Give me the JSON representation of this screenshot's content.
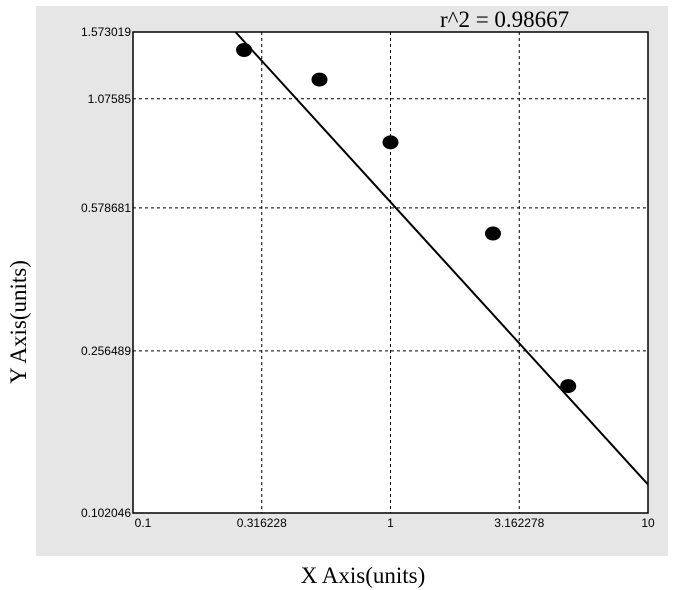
{
  "chart_data": {
    "type": "scatter",
    "title": "",
    "annotation": "r^2  = 0.98667",
    "xlabel": "X Axis(units)",
    "ylabel": "Y Axis(units)",
    "x_scale": "log",
    "y_scale": "log",
    "xlim": [
      0.1,
      10
    ],
    "ylim": [
      0.102046,
      1.573019
    ],
    "x_ticks": [
      "0.1",
      "0.316228",
      "1",
      "3.162278",
      "10"
    ],
    "y_ticks": [
      "0.102046",
      "0.256489",
      "0.578681",
      "1.07585",
      "1.573019"
    ],
    "y_tick_values": [
      0.102046,
      0.256489,
      0.578681,
      1.07585,
      1.573019
    ],
    "grid": true,
    "points": [
      {
        "x": 0.27,
        "y": 1.42
      },
      {
        "x": 0.53,
        "y": 1.2
      },
      {
        "x": 1.0,
        "y": 0.84
      },
      {
        "x": 2.5,
        "y": 0.5
      },
      {
        "x": 4.9,
        "y": 0.21
      }
    ],
    "fit_line": {
      "x": [
        0.25,
        10
      ],
      "y": [
        1.573019,
        0.12
      ]
    },
    "colors": {
      "background": "#e6e6e6",
      "plot_area": "#ffffff",
      "marker": "#000000",
      "line": "#000000"
    }
  }
}
